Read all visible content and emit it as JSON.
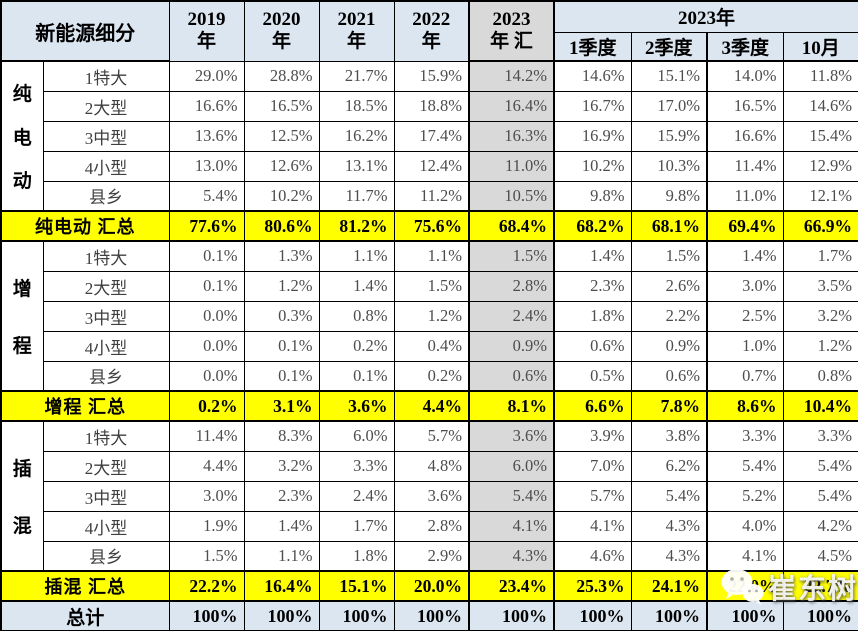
{
  "colors": {
    "header_bg": "#dce6f1",
    "gray_column_bg": "#d9d9d9",
    "summary_row_bg": "#ffff00",
    "total_row_bg": "#dce6f1",
    "border": "#000000",
    "data_text": "#4d4d4d"
  },
  "chart_data": {
    "type": "table",
    "header": {
      "corner": "新能源细分",
      "years": [
        "2019\n年",
        "2020\n年",
        "2021\n年",
        "2022\n年"
      ],
      "ytd_2023": "2023\n年 汇",
      "span_2023": "2023年",
      "quarters": [
        "1季度",
        "2季度",
        "3季度",
        "10月"
      ]
    },
    "columns": [
      "2019年",
      "2020年",
      "2021年",
      "2022年",
      "2023年汇",
      "1季度",
      "2季度",
      "3季度",
      "10月"
    ],
    "sections": [
      {
        "group": "纯电动",
        "rows": [
          {
            "label": "1特大",
            "values": [
              "29.0%",
              "28.8%",
              "21.7%",
              "15.9%",
              "14.2%",
              "14.6%",
              "15.1%",
              "14.0%",
              "11.8%"
            ]
          },
          {
            "label": "2大型",
            "values": [
              "16.6%",
              "16.5%",
              "18.5%",
              "18.8%",
              "16.4%",
              "16.7%",
              "17.0%",
              "16.5%",
              "14.6%"
            ]
          },
          {
            "label": "3中型",
            "values": [
              "13.6%",
              "12.5%",
              "16.2%",
              "17.4%",
              "16.3%",
              "16.9%",
              "15.9%",
              "16.6%",
              "15.4%"
            ]
          },
          {
            "label": "4小型",
            "values": [
              "13.0%",
              "12.6%",
              "13.1%",
              "12.4%",
              "11.0%",
              "10.2%",
              "10.3%",
              "11.4%",
              "12.9%"
            ]
          },
          {
            "label": "县乡",
            "values": [
              "5.4%",
              "10.2%",
              "11.7%",
              "11.2%",
              "10.5%",
              "9.8%",
              "9.8%",
              "11.0%",
              "12.1%"
            ]
          }
        ],
        "summary": {
          "label": "纯电动 汇总",
          "values": [
            "77.6%",
            "80.6%",
            "81.2%",
            "75.6%",
            "68.4%",
            "68.2%",
            "68.1%",
            "69.4%",
            "66.9%"
          ]
        }
      },
      {
        "group": "增程",
        "rows": [
          {
            "label": "1特大",
            "values": [
              "0.1%",
              "1.3%",
              "1.1%",
              "1.1%",
              "1.5%",
              "1.4%",
              "1.5%",
              "1.4%",
              "1.7%"
            ]
          },
          {
            "label": "2大型",
            "values": [
              "0.1%",
              "1.2%",
              "1.4%",
              "1.5%",
              "2.8%",
              "2.3%",
              "2.6%",
              "3.0%",
              "3.5%"
            ]
          },
          {
            "label": "3中型",
            "values": [
              "0.0%",
              "0.3%",
              "0.8%",
              "1.2%",
              "2.4%",
              "1.8%",
              "2.2%",
              "2.5%",
              "3.2%"
            ]
          },
          {
            "label": "4小型",
            "values": [
              "0.0%",
              "0.1%",
              "0.2%",
              "0.4%",
              "0.9%",
              "0.6%",
              "0.9%",
              "1.0%",
              "1.2%"
            ]
          },
          {
            "label": "县乡",
            "values": [
              "0.0%",
              "0.1%",
              "0.1%",
              "0.2%",
              "0.6%",
              "0.5%",
              "0.6%",
              "0.7%",
              "0.8%"
            ]
          }
        ],
        "summary": {
          "label": "增程 汇总",
          "values": [
            "0.2%",
            "3.1%",
            "3.6%",
            "4.4%",
            "8.1%",
            "6.6%",
            "7.8%",
            "8.6%",
            "10.4%"
          ]
        }
      },
      {
        "group": "插混",
        "rows": [
          {
            "label": "1特大",
            "values": [
              "11.4%",
              "8.3%",
              "6.0%",
              "5.7%",
              "3.6%",
              "3.9%",
              "3.8%",
              "3.3%",
              "3.3%"
            ]
          },
          {
            "label": "2大型",
            "values": [
              "4.4%",
              "3.2%",
              "3.3%",
              "4.8%",
              "6.0%",
              "7.0%",
              "6.2%",
              "5.4%",
              "5.4%"
            ]
          },
          {
            "label": "3中型",
            "values": [
              "3.0%",
              "2.3%",
              "2.4%",
              "3.6%",
              "5.4%",
              "5.7%",
              "5.4%",
              "5.2%",
              "5.4%"
            ]
          },
          {
            "label": "4小型",
            "values": [
              "1.9%",
              "1.4%",
              "1.7%",
              "2.8%",
              "4.1%",
              "4.1%",
              "4.3%",
              "4.0%",
              "4.2%"
            ]
          },
          {
            "label": "县乡",
            "values": [
              "1.5%",
              "1.1%",
              "1.8%",
              "2.9%",
              "4.3%",
              "4.6%",
              "4.3%",
              "4.1%",
              "4.5%"
            ]
          }
        ],
        "summary": {
          "label": "插混 汇总",
          "values": [
            "22.2%",
            "16.4%",
            "15.1%",
            "20.0%",
            "23.4%",
            "25.3%",
            "24.1%",
            "22.0%",
            "22.7%"
          ]
        }
      }
    ],
    "total_row": {
      "label": "总计",
      "values": [
        "100%",
        "100%",
        "100%",
        "100%",
        "100%",
        "100%",
        "100%",
        "100%",
        "100%"
      ]
    }
  },
  "watermark": {
    "icon": "wechat-icon",
    "text": "崔东树"
  }
}
